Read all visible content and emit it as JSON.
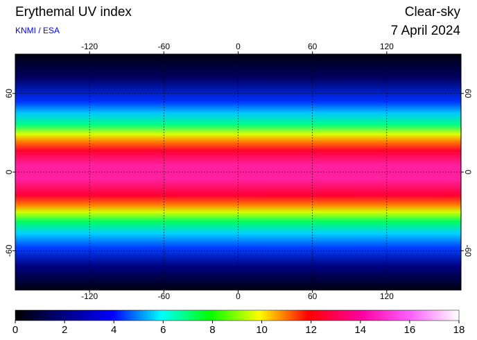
{
  "header": {
    "title": "Erythemal UV index",
    "source": "KNMI / ESA",
    "sky": "Clear-sky",
    "date": "7 April 2024"
  },
  "map": {
    "xlim": [
      -180,
      180
    ],
    "ylim": [
      -90,
      90
    ],
    "xticks": [
      -120,
      -60,
      0,
      60,
      120
    ],
    "yticks": [
      -60,
      0,
      60
    ],
    "grid": true
  },
  "colorbar": {
    "lim": [
      0,
      18
    ],
    "ticks": [
      0,
      2,
      4,
      6,
      8,
      10,
      12,
      14,
      16,
      18
    ]
  }
}
